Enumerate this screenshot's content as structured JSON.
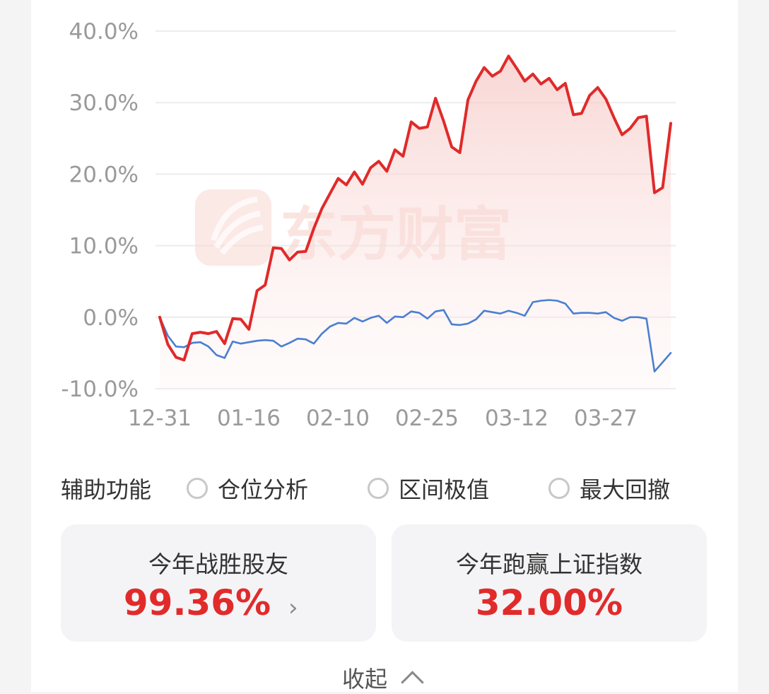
{
  "chart_data": {
    "type": "line",
    "y_ticks": [
      "40.0%",
      "30.0%",
      "20.0%",
      "10.0%",
      "0.0%",
      "-10.0%"
    ],
    "ylim": [
      -10,
      40
    ],
    "x_ticks": [
      "12-31",
      "01-16",
      "02-10",
      "02-25",
      "03-12",
      "03-27"
    ],
    "watermark": "东方财富",
    "series": [
      {
        "color": "#e02a2a",
        "values": [
          0,
          -3.8,
          -5.6,
          -6,
          -2.3,
          -2.1,
          -2.3,
          -2,
          -3.7,
          -0.2,
          -0.3,
          -1.7,
          3.7,
          4.5,
          9.7,
          9.6,
          8,
          9.1,
          9.2,
          12.4,
          15.2,
          17.3,
          19.4,
          18.5,
          20.3,
          18.6,
          20.9,
          21.8,
          20.4,
          23.4,
          22.5,
          27.3,
          26.4,
          26.6,
          30.6,
          27.4,
          23.8,
          23,
          30.4,
          33,
          34.9,
          33.7,
          34.4,
          36.5,
          34.8,
          33,
          34,
          32.6,
          33.4,
          31.8,
          32.7,
          28.3,
          28.5,
          31,
          32.1,
          30.5,
          27.9,
          25.5,
          26.4,
          27.9,
          28.1,
          17.4,
          18.1,
          27.1
        ]
      },
      {
        "color": "#4a7fd0",
        "values": [
          0,
          -2.6,
          -4.1,
          -4.2,
          -3.6,
          -3.5,
          -4.1,
          -5.3,
          -5.7,
          -3.4,
          -3.7,
          -3.5,
          -3.3,
          -3.2,
          -3.3,
          -4.1,
          -3.6,
          -3,
          -3.1,
          -3.7,
          -2.3,
          -1.3,
          -0.8,
          -0.9,
          -0.1,
          -0.6,
          -0.1,
          0.2,
          -0.8,
          0.1,
          0,
          0.8,
          0.6,
          -0.2,
          0.8,
          1,
          -1,
          -1.1,
          -0.9,
          -0.3,
          0.9,
          0.7,
          0.5,
          0.9,
          0.6,
          0.2,
          2.1,
          2.3,
          2.4,
          2.3,
          1.9,
          0.5,
          0.6,
          0.6,
          0.5,
          0.7,
          -0.1,
          -0.5,
          0,
          0,
          -0.2,
          -7.6,
          -6.3,
          -5
        ]
      }
    ]
  },
  "aux": {
    "title": "辅助功能",
    "options": [
      "仓位分析",
      "区间极值",
      "最大回撤"
    ]
  },
  "stats": {
    "left": {
      "label": "今年战胜股友",
      "value": "99.36%",
      "arrow": "›"
    },
    "right": {
      "label": "今年跑赢上证指数",
      "value": "32.00%"
    }
  },
  "collapse_label": "收起",
  "colors": {
    "accent_red": "#e12b2b",
    "blue": "#4a7fd0"
  }
}
